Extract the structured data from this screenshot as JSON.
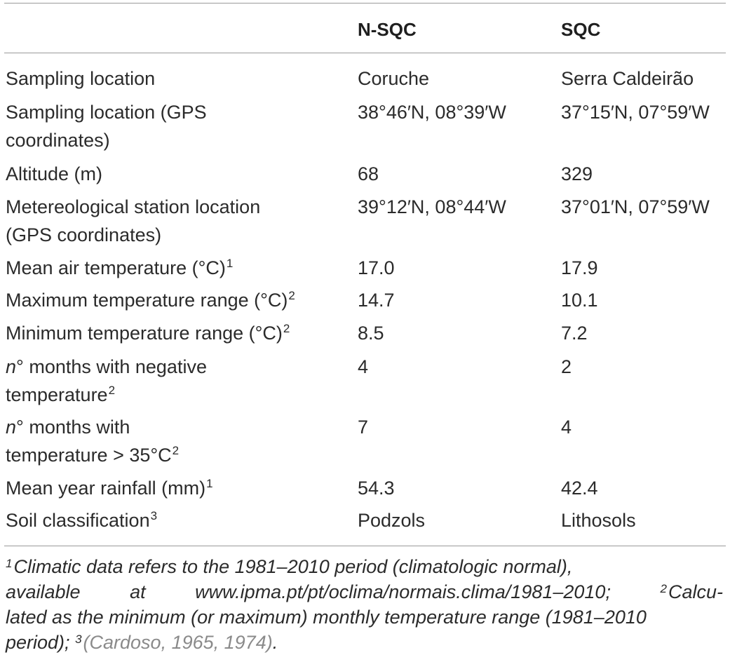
{
  "table": {
    "headers": [
      "",
      "N-SQC",
      "SQC"
    ],
    "rows": [
      {
        "label_lines": [
          "Sampling location"
        ],
        "sup": "",
        "n_sqc": "Coruche",
        "sqc": "Serra Caldeirão"
      },
      {
        "label_lines": [
          "Sampling location (GPS",
          "coordinates)"
        ],
        "sup": "",
        "n_sqc": "38°46′N, 08°39′W",
        "sqc": "37°15′N, 07°59′W"
      },
      {
        "label_lines": [
          "Altitude (m)"
        ],
        "sup": "",
        "n_sqc": "68",
        "sqc": "329"
      },
      {
        "label_lines": [
          "Metereological station location",
          "(GPS coordinates)"
        ],
        "sup": "",
        "n_sqc": "39°12′N, 08°44′W",
        "sqc": "37°01′N, 07°59′W"
      },
      {
        "label_lines": [
          "Mean air temperature (°C)"
        ],
        "sup": "1",
        "n_sqc": "17.0",
        "sqc": "17.9"
      },
      {
        "label_lines": [
          "Maximum temperature range (°C)"
        ],
        "sup": "2",
        "n_sqc": "14.7",
        "sqc": "10.1"
      },
      {
        "label_lines": [
          "Minimum temperature range (°C)"
        ],
        "sup": "2",
        "n_sqc": "8.5",
        "sqc": "7.2"
      },
      {
        "label_lines": [
          "n° months with negative",
          "temperature"
        ],
        "sup": "2",
        "n_sqc": "4",
        "sqc": "2"
      },
      {
        "label_lines": [
          "n° months with",
          "temperature > 35°C"
        ],
        "sup": "2",
        "n_sqc": "7",
        "sqc": "4"
      },
      {
        "label_lines": [
          "Mean year rainfall (mm)"
        ],
        "sup": "1",
        "n_sqc": "54.3",
        "sqc": "42.4"
      },
      {
        "label_lines": [
          "Soil classification"
        ],
        "sup": "3",
        "n_sqc": "Podzols",
        "sqc": "Lithosols"
      }
    ]
  },
  "footnotes": {
    "n1": "1",
    "line1": "Climatic data refers to the 1981–2010 period (climatologic normal),",
    "line2_a": "available",
    "line2_b": "at",
    "line2_c": "www.ipma.pt/pt/oclima/normais.clima/1981–2010;",
    "n2": "2",
    "line2_d": "Calcu-",
    "line3": "lated as the minimum (or maximum) monthly temperature range (1981–2010",
    "line4_a": "period);",
    "n3": "3",
    "line4_cite": "(Cardoso, 1965, 1974)",
    "line4_end": "."
  }
}
